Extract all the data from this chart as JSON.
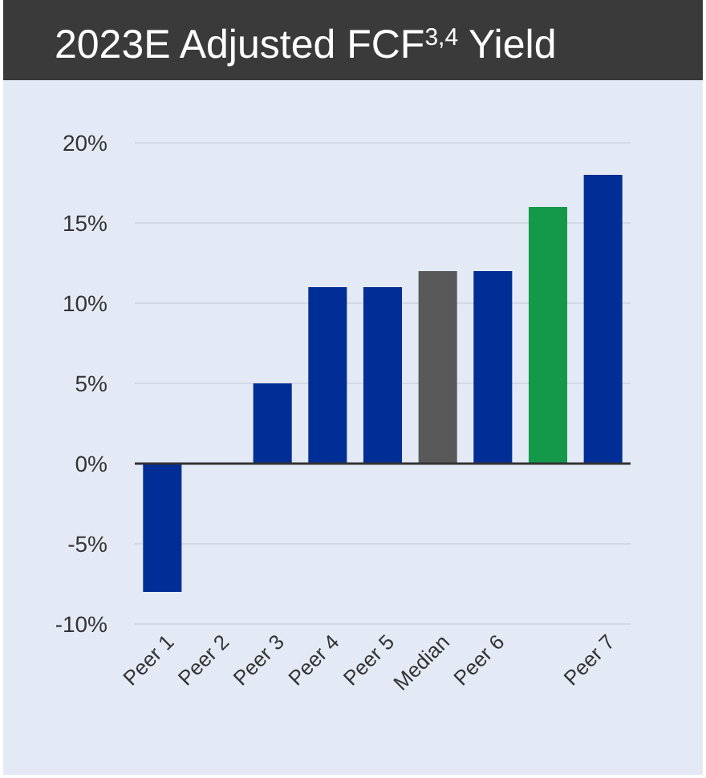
{
  "chart_data": {
    "type": "bar",
    "title": "2023E Adjusted FCF$^{3,4}$ Yield",
    "categories": [
      "Peer 1",
      "Peer 2",
      "Peer 3",
      "Peer 4",
      "Peer 5",
      "Median",
      "Peer 6",
      null,
      "Peer 7"
    ],
    "values": [
      -8,
      0,
      5,
      11,
      11,
      12,
      12,
      16,
      18
    ],
    "colors": [
      "#002d96",
      "#002d96",
      "#002d96",
      "#002d96",
      "#002d96",
      "#595959",
      "#002d96",
      "#14994a",
      "#002d96"
    ],
    "ylim": [
      -10,
      20
    ],
    "yticks": [
      {
        "value": -10,
        "label": "-10%"
      },
      {
        "value": -5,
        "label": "-5%"
      },
      {
        "value": 0,
        "label": "0%"
      },
      {
        "value": 5,
        "label": "5%"
      },
      {
        "value": 10,
        "label": "10%"
      },
      {
        "value": 15,
        "label": "15%"
      },
      {
        "value": 20,
        "label": "20%"
      }
    ],
    "grid": "y"
  }
}
